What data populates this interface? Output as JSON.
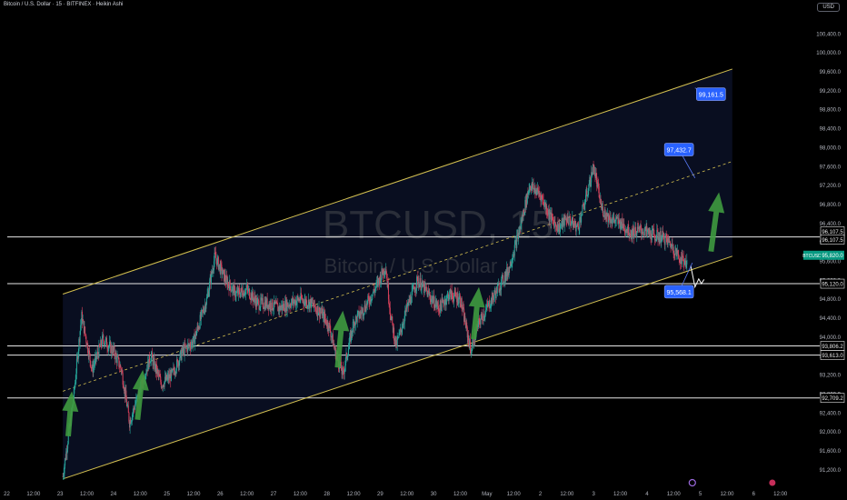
{
  "header": {
    "title": "Bitcoin / U.S. Dollar · 15 · BITFINEX · Heikin Ashi",
    "currency_button": "USD"
  },
  "watermark": {
    "symbol": "BTCUSD, 15",
    "name": "Bitcoin / U.S. Dollar"
  },
  "colors": {
    "background": "#000000",
    "channel": "#d4c050",
    "horizontal_lines": "#e6e6e6",
    "up_candle": "#26a69a",
    "down_candle": "#d8405a",
    "arrow": "#3f9a3f",
    "price_label_bg": "#2962ff"
  },
  "chart_data": {
    "type": "candlestick",
    "title": "BTCUSD, 15",
    "ylim": [
      90900,
      100800
    ],
    "y_ticks": [
      91200,
      91600,
      92000,
      92400,
      92800,
      93200,
      93600,
      94000,
      94400,
      94800,
      95200,
      95600,
      96000,
      96400,
      96800,
      97200,
      97600,
      98000,
      98400,
      98800,
      99200,
      99600,
      100000,
      100400
    ],
    "y_tick_labels": [
      "91,200.0",
      "91,600.0",
      "92,000.0",
      "92,400.0",
      "92,800.0",
      "93,200.0",
      "93,600.0",
      "94,000.0",
      "94,400.0",
      "94,800.0",
      "95,200.0",
      "95,600.0",
      "96,000.0",
      "96,400.0",
      "96,800.0",
      "97,200.0",
      "97,600.0",
      "98,000.0",
      "98,400.0",
      "98,800.0",
      "99,200.0",
      "99,600.0",
      "100,000.0",
      "100,400.0"
    ],
    "x_ticks": [
      {
        "d": 0.0,
        "label": "22"
      },
      {
        "d": 0.5,
        "label": "12:00"
      },
      {
        "d": 1.0,
        "label": "23"
      },
      {
        "d": 1.5,
        "label": "12:00"
      },
      {
        "d": 2.0,
        "label": "24"
      },
      {
        "d": 2.5,
        "label": "12:00"
      },
      {
        "d": 3.0,
        "label": "25"
      },
      {
        "d": 3.5,
        "label": "12:00"
      },
      {
        "d": 4.0,
        "label": "26"
      },
      {
        "d": 4.5,
        "label": "12:00"
      },
      {
        "d": 5.0,
        "label": "27"
      },
      {
        "d": 5.5,
        "label": "12:00"
      },
      {
        "d": 6.0,
        "label": "28"
      },
      {
        "d": 6.5,
        "label": "12:00"
      },
      {
        "d": 7.0,
        "label": "29"
      },
      {
        "d": 7.5,
        "label": "12:00"
      },
      {
        "d": 8.0,
        "label": "30"
      },
      {
        "d": 8.5,
        "label": "12:00"
      },
      {
        "d": 9.0,
        "label": "May"
      },
      {
        "d": 9.5,
        "label": "12:00"
      },
      {
        "d": 10.0,
        "label": "2"
      },
      {
        "d": 10.5,
        "label": "12:00"
      },
      {
        "d": 11.0,
        "label": "3"
      },
      {
        "d": 11.5,
        "label": "12:00"
      },
      {
        "d": 12.0,
        "label": "4"
      },
      {
        "d": 12.5,
        "label": "12:00"
      },
      {
        "d": 13.0,
        "label": "5"
      },
      {
        "d": 13.5,
        "label": "12:00"
      },
      {
        "d": 14.0,
        "label": "6"
      },
      {
        "d": 14.5,
        "label": "12:00"
      }
    ],
    "price_path": [
      [
        1.05,
        91050
      ],
      [
        1.25,
        92700
      ],
      [
        1.4,
        94450
      ],
      [
        1.6,
        93300
      ],
      [
        1.8,
        93950
      ],
      [
        2.0,
        93700
      ],
      [
        2.15,
        93300
      ],
      [
        2.3,
        92200
      ],
      [
        2.5,
        92900
      ],
      [
        2.7,
        93600
      ],
      [
        2.9,
        93000
      ],
      [
        3.1,
        93200
      ],
      [
        3.3,
        93700
      ],
      [
        3.5,
        93900
      ],
      [
        3.75,
        94800
      ],
      [
        3.9,
        95700
      ],
      [
        4.1,
        95200
      ],
      [
        4.3,
        94900
      ],
      [
        4.5,
        95000
      ],
      [
        4.7,
        94700
      ],
      [
        4.9,
        94700
      ],
      [
        5.1,
        94600
      ],
      [
        5.3,
        94700
      ],
      [
        5.5,
        94800
      ],
      [
        5.7,
        94700
      ],
      [
        5.9,
        94500
      ],
      [
        6.05,
        94200
      ],
      [
        6.15,
        93700
      ],
      [
        6.3,
        93200
      ],
      [
        6.5,
        94300
      ],
      [
        6.7,
        94600
      ],
      [
        6.9,
        95000
      ],
      [
        7.1,
        95500
      ],
      [
        7.2,
        94400
      ],
      [
        7.3,
        93800
      ],
      [
        7.5,
        94600
      ],
      [
        7.7,
        95200
      ],
      [
        7.9,
        94900
      ],
      [
        8.1,
        94600
      ],
      [
        8.3,
        94900
      ],
      [
        8.5,
        94800
      ],
      [
        8.7,
        93700
      ],
      [
        8.85,
        94300
      ],
      [
        9.0,
        94600
      ],
      [
        9.2,
        95000
      ],
      [
        9.4,
        95400
      ],
      [
        9.6,
        96200
      ],
      [
        9.8,
        97200
      ],
      [
        10.0,
        97000
      ],
      [
        10.2,
        96500
      ],
      [
        10.35,
        96300
      ],
      [
        10.5,
        96500
      ],
      [
        10.7,
        96300
      ],
      [
        10.85,
        96900
      ],
      [
        11.0,
        97600
      ],
      [
        11.15,
        96700
      ],
      [
        11.3,
        96500
      ],
      [
        11.5,
        96400
      ],
      [
        11.7,
        96200
      ],
      [
        11.9,
        96250
      ],
      [
        12.1,
        96150
      ],
      [
        12.3,
        96100
      ],
      [
        12.45,
        95950
      ],
      [
        12.6,
        95680
      ],
      [
        12.75,
        95560
      ]
    ],
    "channel": {
      "upper": [
        [
          1.05,
          94900
        ],
        [
          13.6,
          99650
        ]
      ],
      "lower": [
        [
          1.05,
          91000
        ],
        [
          13.6,
          95700
        ]
      ],
      "mid": [
        [
          1.05,
          92850
        ],
        [
          13.6,
          97700
        ]
      ]
    },
    "horizontal_levels": [
      {
        "price": 96107.5,
        "label": "96,107.5"
      },
      {
        "price": 95120.0,
        "label": "95,120.0"
      },
      {
        "price": 93806.2,
        "label": "93,806.2"
      },
      {
        "price": 93613.0,
        "label": "93,613.0"
      },
      {
        "price": 92709.2,
        "label": "92,709.2"
      }
    ],
    "axis_badges": [
      {
        "price": 96225,
        "label": "96,107.5",
        "style": "outline"
      },
      {
        "price": 96050,
        "label": "96,107.5",
        "style": "outline"
      },
      {
        "price": 95720,
        "label": "95,820.0",
        "style": "current",
        "tag": "BTCUSD"
      }
    ],
    "callouts": [
      {
        "d": 13.2,
        "price": 99120,
        "label": "99,161.5",
        "pointer_d": 12.9,
        "pointer_price": 99250
      },
      {
        "d": 12.6,
        "price": 97950,
        "label": "97,432.7",
        "pointer_d": 12.9,
        "pointer_price": 97350
      },
      {
        "d": 12.6,
        "price": 94950,
        "label": "95,568.1",
        "pointer_d": 12.85,
        "pointer_price": 95560
      }
    ],
    "arrows": [
      {
        "d0": 1.15,
        "p0": 91900,
        "d1": 1.22,
        "p1": 92850
      },
      {
        "d0": 2.45,
        "p0": 92250,
        "d1": 2.55,
        "p1": 93300
      },
      {
        "d0": 6.2,
        "p0": 93350,
        "d1": 6.3,
        "p1": 94550
      },
      {
        "d0": 8.75,
        "p0": 93950,
        "d1": 8.85,
        "p1": 95050
      },
      {
        "d0": 13.2,
        "p0": 95800,
        "d1": 13.35,
        "p1": 97050
      }
    ],
    "forecast_zigzag": [
      [
        12.82,
        95500
      ],
      [
        12.9,
        95050
      ],
      [
        12.97,
        95220
      ],
      [
        13.02,
        95120
      ],
      [
        13.07,
        95210
      ]
    ]
  }
}
